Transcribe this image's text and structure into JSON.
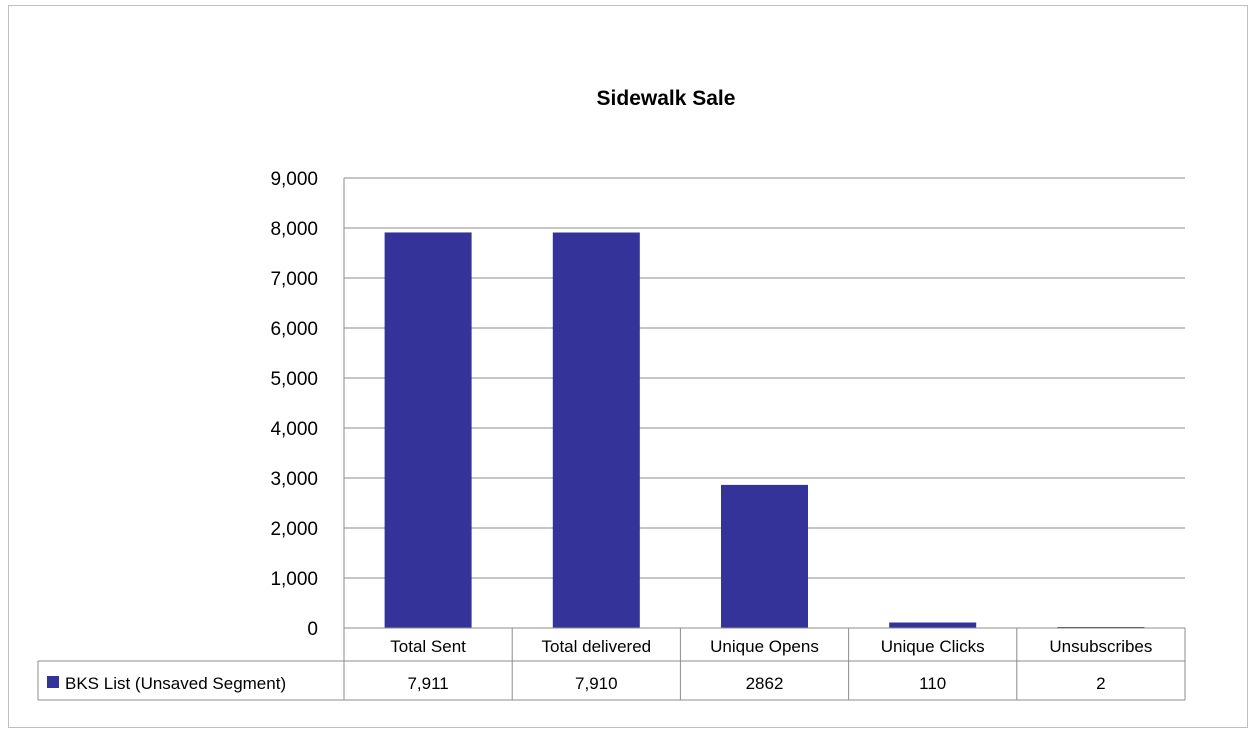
{
  "chart_data": {
    "type": "bar",
    "title": "Sidewalk Sale",
    "categories": [
      "Total Sent",
      "Total delivered",
      "Unique Opens",
      "Unique Clicks",
      "Unsubscribes"
    ],
    "series": [
      {
        "name": "BKS List (Unsaved Segment)",
        "values": [
          7911,
          7910,
          2862,
          110,
          2
        ],
        "labels": [
          "7,911",
          "7,910",
          "2862",
          "110",
          "2"
        ],
        "color": "#333399"
      }
    ],
    "y_ticks": [
      "0",
      "1,000",
      "2,000",
      "3,000",
      "4,000",
      "5,000",
      "6,000",
      "7,000",
      "8,000",
      "9,000"
    ],
    "ylim": [
      0,
      9000
    ],
    "grid": true,
    "legend": "data-table"
  }
}
